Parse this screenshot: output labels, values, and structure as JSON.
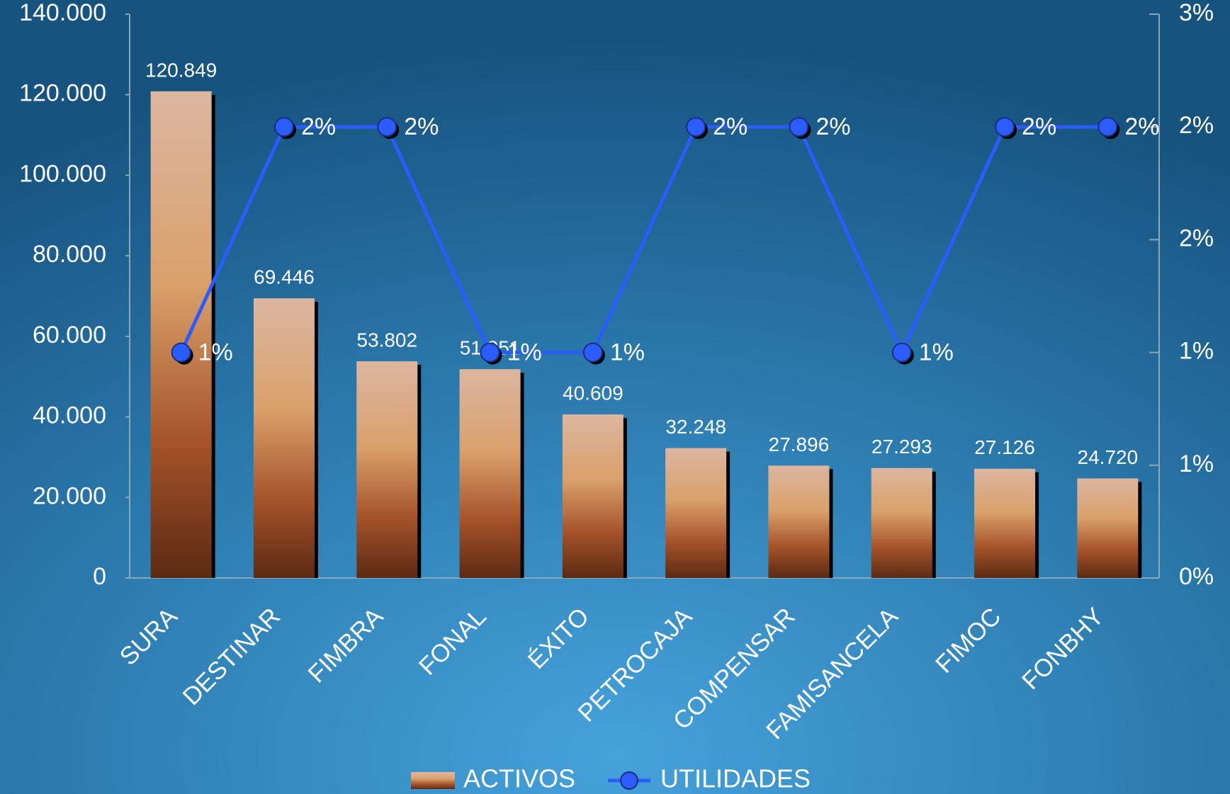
{
  "chart_data": {
    "type": "bar-line",
    "categories": [
      "SURA",
      "DESTINAR",
      "FIMBRA",
      "FONAL",
      "ÉXITO",
      "PETROCAJA",
      "COMPENSAR",
      "FAMISANCELA",
      "FIMOC",
      "FONBHY"
    ],
    "series": [
      {
        "name": "ACTIVOS",
        "type": "bar",
        "color": "#d9a06a",
        "values": [
          120849,
          69446,
          53802,
          51851,
          40609,
          32248,
          27896,
          27293,
          27126,
          24720
        ],
        "value_labels": [
          "120.849",
          "69.446",
          "53.802",
          "51.851",
          "40.609",
          "32.248",
          "27.896",
          "27.293",
          "27.126",
          "24.720"
        ]
      },
      {
        "name": "UTILIDADES",
        "type": "line",
        "axis": "y2",
        "color": "#2b5cff",
        "values": [
          1,
          2,
          2,
          1,
          1,
          2,
          2,
          1,
          2,
          2
        ],
        "value_labels": [
          "1%",
          "2%",
          "2%",
          "1%",
          "1%",
          "2%",
          "2%",
          "1%",
          "2%",
          "2%"
        ]
      }
    ],
    "ylim": [
      0,
      140000
    ],
    "yticks": [
      0,
      {
        "value": 20000,
        "label": "20.000"
      },
      {
        "value": 40000,
        "label": "40.000"
      },
      {
        "value": 60000,
        "label": "60.000"
      },
      {
        "value": 80000,
        "label": "80.000"
      },
      {
        "value": 100000,
        "label": "100.000"
      },
      {
        "value": 120000,
        "label": "120.000"
      },
      {
        "value": 140000,
        "label": "140.000"
      }
    ],
    "y2lim": [
      0,
      2.5
    ],
    "y2ticks": [
      {
        "value": 0,
        "label": "0%"
      },
      {
        "value": 0.5,
        "label": "1%"
      },
      {
        "value": 1,
        "label": "1%"
      },
      {
        "value": 1.5,
        "label": "2%"
      },
      {
        "value": 2,
        "label": "2%"
      },
      {
        "value": 2.5,
        "label": "3%"
      }
    ],
    "legend": "bottom"
  }
}
